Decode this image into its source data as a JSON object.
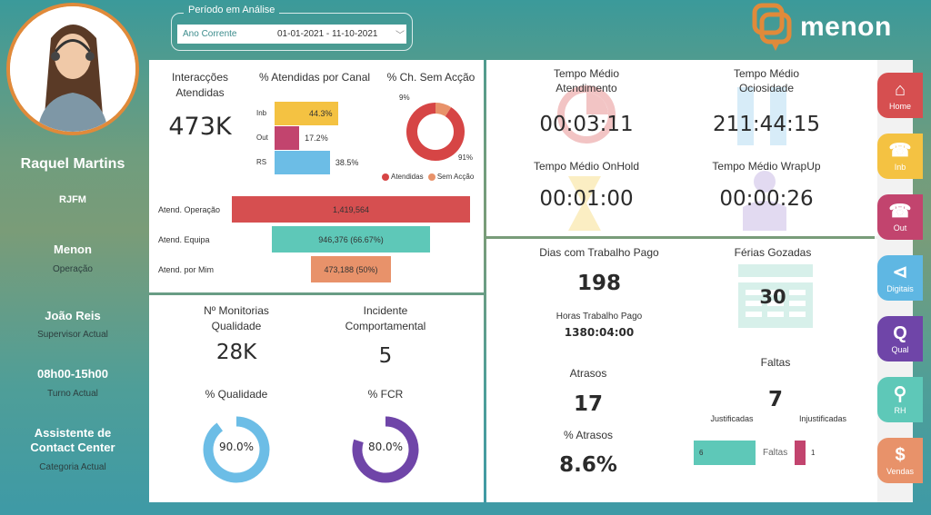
{
  "profile": {
    "name": "Raquel Martins",
    "code": "RJFM",
    "company": "Menon",
    "company_sub": "Operação",
    "supervisor": "João Reis",
    "supervisor_sub": "Supervisor Actual",
    "shift": "08h00-15h00",
    "shift_sub": "Turno Actual",
    "category_line1": "Assistente de",
    "category_line2": "Contact Center",
    "category_sub": "Categoria Actual"
  },
  "period": {
    "label": "Período em Análise",
    "mode": "Ano Corrente",
    "range": "01-01-2021 - 11-10-2021"
  },
  "logo": {
    "text": "menon",
    "color": "#e08a3a"
  },
  "interactions": {
    "title_line1": "Interacções",
    "title_line2": "Atendidas",
    "value": "473K"
  },
  "channels": {
    "title": "% Atendidas por Canal",
    "items": [
      {
        "label": "Inb",
        "value": 44.3,
        "text": "44.3%",
        "color": "#f4c242"
      },
      {
        "label": "Out",
        "value": 17.2,
        "text": "17.2%",
        "color": "#c2446e"
      },
      {
        "label": "RS",
        "value": 38.5,
        "text": "38.5%",
        "color": "#6cbde6"
      }
    ]
  },
  "no_action": {
    "title": "% Ch. Sem Acção",
    "answered_pct": 91,
    "no_action_pct": 9,
    "answered_label": "91%",
    "no_action_label": "9%",
    "legend": [
      {
        "label": "Atendidas",
        "color": "#d64545"
      },
      {
        "label": "Sem Acção",
        "color": "#e8926a"
      }
    ]
  },
  "funnel": [
    {
      "label": "Atend. Operação",
      "value": 1419564,
      "text": "1,419,564",
      "color": "#d64f50"
    },
    {
      "label": "Atend. Equipa",
      "value": 946376,
      "text": "946,376 (66.67%)",
      "color": "#5ec8b8"
    },
    {
      "label": "Atend. por Mim",
      "value": 473188,
      "text": "473,188 (50%)",
      "color": "#e8926a"
    }
  ],
  "quality": {
    "monitor_title_line1": "Nº Monitorias",
    "monitor_title_line2": "Qualidade",
    "monitor_value": "28K",
    "incident_title_line1": "Incidente",
    "incident_title_line2": "Comportamental",
    "incident_value": "5",
    "quality_title": "% Qualidade",
    "quality_pct": 90.0,
    "quality_text": "90.0%",
    "quality_color": "#6cbde6",
    "fcr_title": "% FCR",
    "fcr_pct": 80.0,
    "fcr_text": "80.0%",
    "fcr_color": "#6f45a8"
  },
  "times": {
    "aht_line1": "Tempo Médio",
    "aht_line2": "Atendimento",
    "aht_value": "00:03:11",
    "idle_line1": "Tempo Médio",
    "idle_line2": "Ociosidade",
    "idle_value": "211:44:15",
    "hold_title": "Tempo Médio OnHold",
    "hold_value": "00:01:00",
    "wrap_title": "Tempo Médio WrapUp",
    "wrap_value": "00:00:26"
  },
  "hr": {
    "paid_days_title": "Dias com Trabalho Pago",
    "paid_days_value": "198",
    "paid_hours_title": "Horas Trabalho Pago",
    "paid_hours_value": "1380:04:00",
    "vacation_title": "Férias Gozadas",
    "vacation_value": "30",
    "delays_title": "Atrasos",
    "delays_value": "17",
    "delays_pct_title": "% Atrasos",
    "delays_pct_value": "8.6%",
    "absences_title": "Faltas",
    "absences_value": "7",
    "justified_label": "Justificadas",
    "unjustified_label": "Injustificadas",
    "justified_value": 6,
    "unjustified_value": 1,
    "justified_text": "6",
    "unjustified_text": "1",
    "bar_axis_label": "Faltas"
  },
  "nav": [
    {
      "label": "Home",
      "icon": "home-icon",
      "glyph": "⌂",
      "color": "#d64f50"
    },
    {
      "label": "Inb",
      "icon": "phone-incoming-icon",
      "glyph": "☎",
      "color": "#f4c242"
    },
    {
      "label": "Out",
      "icon": "phone-outgoing-icon",
      "glyph": "☎",
      "color": "#c2446e"
    },
    {
      "label": "Digitais",
      "icon": "share-icon",
      "glyph": "⊲",
      "color": "#5fb7e3"
    },
    {
      "label": "Qual",
      "icon": "quality-q-icon",
      "glyph": "Q",
      "color": "#6f45a8"
    },
    {
      "label": "RH",
      "icon": "person-search-icon",
      "glyph": "⚲",
      "color": "#5ec8b8"
    },
    {
      "label": "Vendas",
      "icon": "dollar-icon",
      "glyph": "$",
      "color": "#e8926a"
    }
  ]
}
